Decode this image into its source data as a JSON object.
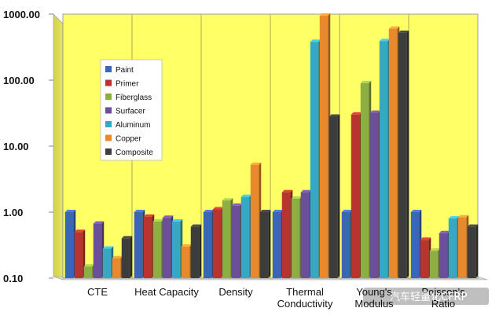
{
  "chart_data": {
    "type": "bar",
    "scale": "log",
    "ylim": [
      0.1,
      1000
    ],
    "yticks": [
      "1000.00",
      "100.00",
      "10.00",
      "1.00",
      "0.10"
    ],
    "ytick_values": [
      1000,
      100,
      10,
      1,
      0.1
    ],
    "categories": [
      [
        "CTE"
      ],
      [
        "Heat Capacity"
      ],
      [
        "Density"
      ],
      [
        "Thermal",
        "Conductivity"
      ],
      [
        "Young's",
        "Modulus"
      ],
      [
        "Poisson's",
        "Ratio"
      ]
    ],
    "legend_position": "top-left inside plot",
    "background_color": "#ffff66",
    "grid": "vertical lines between categories",
    "series": [
      {
        "name": "Paint",
        "color": "#3a66b8",
        "values": [
          1.0,
          1.0,
          1.0,
          1.0,
          1.0,
          1.0
        ]
      },
      {
        "name": "Primer",
        "color": "#b8352f",
        "values": [
          0.5,
          0.85,
          1.1,
          2.0,
          30,
          0.38
        ]
      },
      {
        "name": "Fiberglass",
        "color": "#8dae43",
        "values": [
          0.15,
          0.72,
          1.5,
          1.6,
          90,
          0.26
        ]
      },
      {
        "name": "Surfacer",
        "color": "#6c4f9a",
        "values": [
          0.67,
          0.82,
          1.25,
          2.0,
          32,
          0.48
        ]
      },
      {
        "name": "Aluminum",
        "color": "#36a8c4",
        "values": [
          0.28,
          0.72,
          1.7,
          380,
          390,
          0.8
        ]
      },
      {
        "name": "Copper",
        "color": "#e8892e",
        "values": [
          0.2,
          0.3,
          5.2,
          950,
          600,
          0.83
        ]
      },
      {
        "name": "Composite",
        "color": "#3d3d3d",
        "values": [
          0.4,
          0.6,
          1.0,
          28,
          520,
          0.6
        ]
      }
    ]
  },
  "watermark": {
    "text": "汽车轻量化CFRP"
  }
}
